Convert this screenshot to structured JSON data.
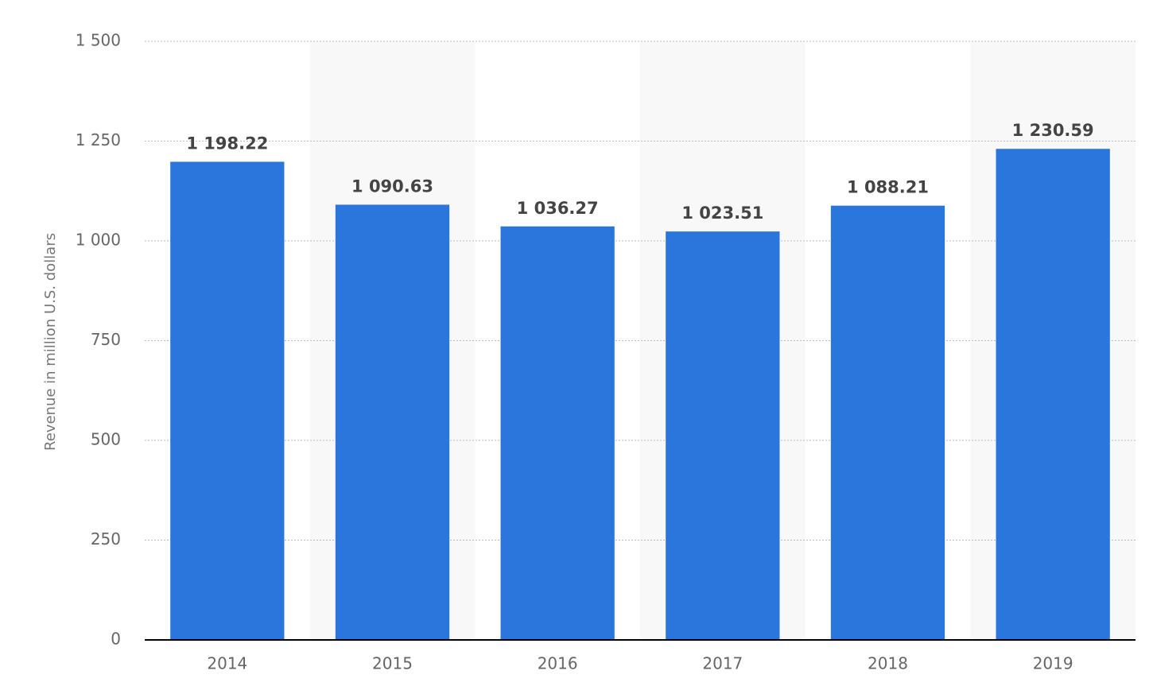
{
  "chart_data": {
    "type": "bar",
    "y_label": "Revenue in million U.S. dollars",
    "categories": [
      "2014",
      "2015",
      "2016",
      "2017",
      "2018",
      "2019"
    ],
    "values": [
      1198.22,
      1090.63,
      1036.27,
      1023.51,
      1088.21,
      1230.59
    ],
    "value_labels": [
      "1 198.22",
      "1 090.63",
      "1 036.27",
      "1 023.51",
      "1 088.21",
      "1 230.59"
    ],
    "color": "#2a76dd",
    "ylim": [
      0,
      1500
    ],
    "yticks": [
      0,
      250,
      500,
      750,
      {
        "value": 1000,
        "label": "1 000"
      },
      {
        "value": 1250,
        "label": "1 250"
      },
      {
        "value": 1500,
        "label": "1 500"
      }
    ],
    "grid": true
  }
}
